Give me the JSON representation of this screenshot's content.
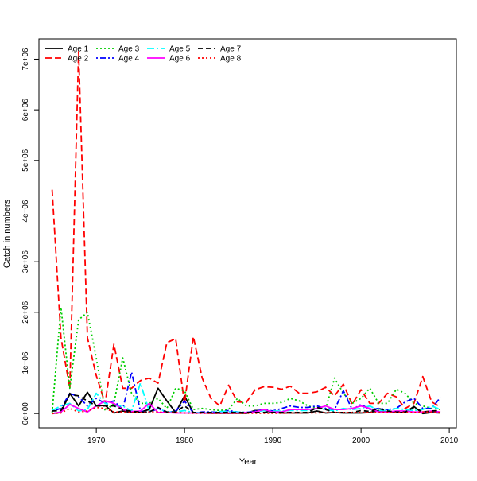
{
  "chart_data": {
    "type": "line",
    "title": "",
    "xlabel": "Year",
    "ylabel": "Catch in numbers",
    "xlim": [
      1963.5,
      2010.8
    ],
    "ylim": [
      -280000,
      7400000
    ],
    "x_ticks": [
      1970,
      1980,
      1990,
      2000,
      2010
    ],
    "x_tick_labels": [
      "1970",
      "1980",
      "1990",
      "2000",
      "2010"
    ],
    "y_ticks": [
      0,
      1000000,
      2000000,
      3000000,
      4000000,
      5000000,
      6000000,
      7000000
    ],
    "y_tick_labels": [
      "0e+00",
      "1e+06",
      "2e+06",
      "3e+06",
      "4e+06",
      "5e+06",
      "6e+06",
      "7e+06"
    ],
    "grid": false,
    "legend_position": "top-left",
    "x": [
      1965,
      1966,
      1967,
      1968,
      1969,
      1970,
      1971,
      1972,
      1973,
      1974,
      1975,
      1976,
      1977,
      1978,
      1979,
      1980,
      1981,
      1982,
      1983,
      1984,
      1985,
      1986,
      1987,
      1988,
      1989,
      1990,
      1991,
      1992,
      1993,
      1994,
      1995,
      1996,
      1997,
      1998,
      1999,
      2000,
      2001,
      2002,
      2003,
      2004,
      2005,
      2006,
      2007,
      2008,
      2009
    ],
    "series": [
      {
        "name": "Age 1",
        "color": "#000000",
        "dash": "solid",
        "values": [
          0,
          20000,
          400000,
          150000,
          420000,
          150000,
          160000,
          10000,
          50000,
          20000,
          30000,
          80000,
          500000,
          250000,
          20000,
          350000,
          10000,
          10000,
          5000,
          5000,
          5000,
          5000,
          5000,
          60000,
          60000,
          20000,
          10000,
          10000,
          10000,
          10000,
          50000,
          10000,
          20000,
          10000,
          10000,
          10000,
          20000,
          60000,
          30000,
          20000,
          20000,
          140000,
          0,
          20000,
          10000
        ]
      },
      {
        "name": "Age 2",
        "color": "#ff0000",
        "dash": "long-dash",
        "values": [
          4420000,
          1500000,
          500000,
          7150000,
          1500000,
          750000,
          200000,
          1370000,
          500000,
          500000,
          650000,
          700000,
          600000,
          1400000,
          1480000,
          200000,
          1520000,
          700000,
          300000,
          150000,
          560000,
          230000,
          220000,
          470000,
          530000,
          520000,
          480000,
          540000,
          400000,
          400000,
          430000,
          520000,
          350000,
          580000,
          180000,
          470000,
          200000,
          200000,
          400000,
          330000,
          100000,
          200000,
          730000,
          230000,
          130000
        ]
      },
      {
        "name": "Age 3",
        "color": "#00cd00",
        "dash": "dotted",
        "values": [
          20000,
          2100000,
          500000,
          1850000,
          2000000,
          1100000,
          50000,
          200000,
          1100000,
          400000,
          200000,
          200000,
          300000,
          100000,
          500000,
          450000,
          80000,
          100000,
          80000,
          60000,
          80000,
          300000,
          150000,
          150000,
          200000,
          200000,
          220000,
          300000,
          250000,
          150000,
          100000,
          100000,
          700000,
          400000,
          200000,
          300000,
          500000,
          200000,
          200000,
          480000,
          400000,
          200000,
          150000,
          100000,
          80000
        ]
      },
      {
        "name": "Age 4",
        "color": "#0000ff",
        "dash": "dot-dash",
        "values": [
          50000,
          100000,
          400000,
          330000,
          150000,
          300000,
          200000,
          250000,
          80000,
          820000,
          50000,
          20000,
          100000,
          20000,
          50000,
          250000,
          10000,
          30000,
          30000,
          20000,
          60000,
          30000,
          20000,
          50000,
          80000,
          50000,
          100000,
          150000,
          120000,
          120000,
          150000,
          100000,
          80000,
          450000,
          80000,
          180000,
          80000,
          100000,
          80000,
          100000,
          230000,
          300000,
          100000,
          100000,
          320000
        ]
      },
      {
        "name": "Age 5",
        "color": "#00ffff",
        "dash": "long-dash-dot",
        "values": [
          60000,
          150000,
          200000,
          50000,
          80000,
          400000,
          200000,
          150000,
          150000,
          50000,
          600000,
          50000,
          100000,
          30000,
          30000,
          60000,
          20000,
          20000,
          20000,
          40000,
          40000,
          30000,
          20000,
          30000,
          60000,
          50000,
          50000,
          60000,
          60000,
          60000,
          100000,
          80000,
          50000,
          100000,
          80000,
          100000,
          150000,
          60000,
          60000,
          100000,
          80000,
          60000,
          80000,
          150000,
          80000
        ]
      },
      {
        "name": "Age 6",
        "color": "#ff00ff",
        "dash": "solid",
        "values": [
          0,
          30000,
          180000,
          100000,
          30000,
          150000,
          250000,
          200000,
          80000,
          40000,
          50000,
          200000,
          20000,
          20000,
          10000,
          10000,
          10000,
          10000,
          10000,
          10000,
          10000,
          10000,
          20000,
          30000,
          80000,
          30000,
          30000,
          80000,
          80000,
          80000,
          100000,
          150000,
          80000,
          80000,
          100000,
          150000,
          100000,
          30000,
          30000,
          50000,
          50000,
          30000,
          30000,
          50000,
          30000
        ]
      },
      {
        "name": "Age 7",
        "color": "#000000",
        "dash": "dashed",
        "values": [
          50000,
          60000,
          380000,
          350000,
          250000,
          150000,
          150000,
          150000,
          80000,
          40000,
          30000,
          30000,
          120000,
          30000,
          30000,
          150000,
          20000,
          20000,
          20000,
          20000,
          20000,
          20000,
          20000,
          20000,
          20000,
          20000,
          20000,
          20000,
          20000,
          20000,
          120000,
          80000,
          20000,
          20000,
          20000,
          60000,
          40000,
          100000,
          50000,
          30000,
          30000,
          120000,
          30000,
          50000,
          60000
        ]
      },
      {
        "name": "Age 8",
        "color": "#ff0000",
        "dash": "dotted",
        "values": [
          0,
          10000,
          100000,
          30000,
          50000,
          120000,
          100000,
          30000,
          30000,
          20000,
          20000,
          30000,
          30000,
          20000,
          20000,
          10000,
          5000,
          5000,
          5000,
          5000,
          5000,
          5000,
          5000,
          5000,
          5000,
          5000,
          5000,
          10000,
          10000,
          10000,
          10000,
          20000,
          20000,
          20000,
          20000,
          20000,
          20000,
          20000,
          20000,
          20000,
          20000,
          20000,
          30000,
          30000,
          20000
        ]
      }
    ]
  }
}
